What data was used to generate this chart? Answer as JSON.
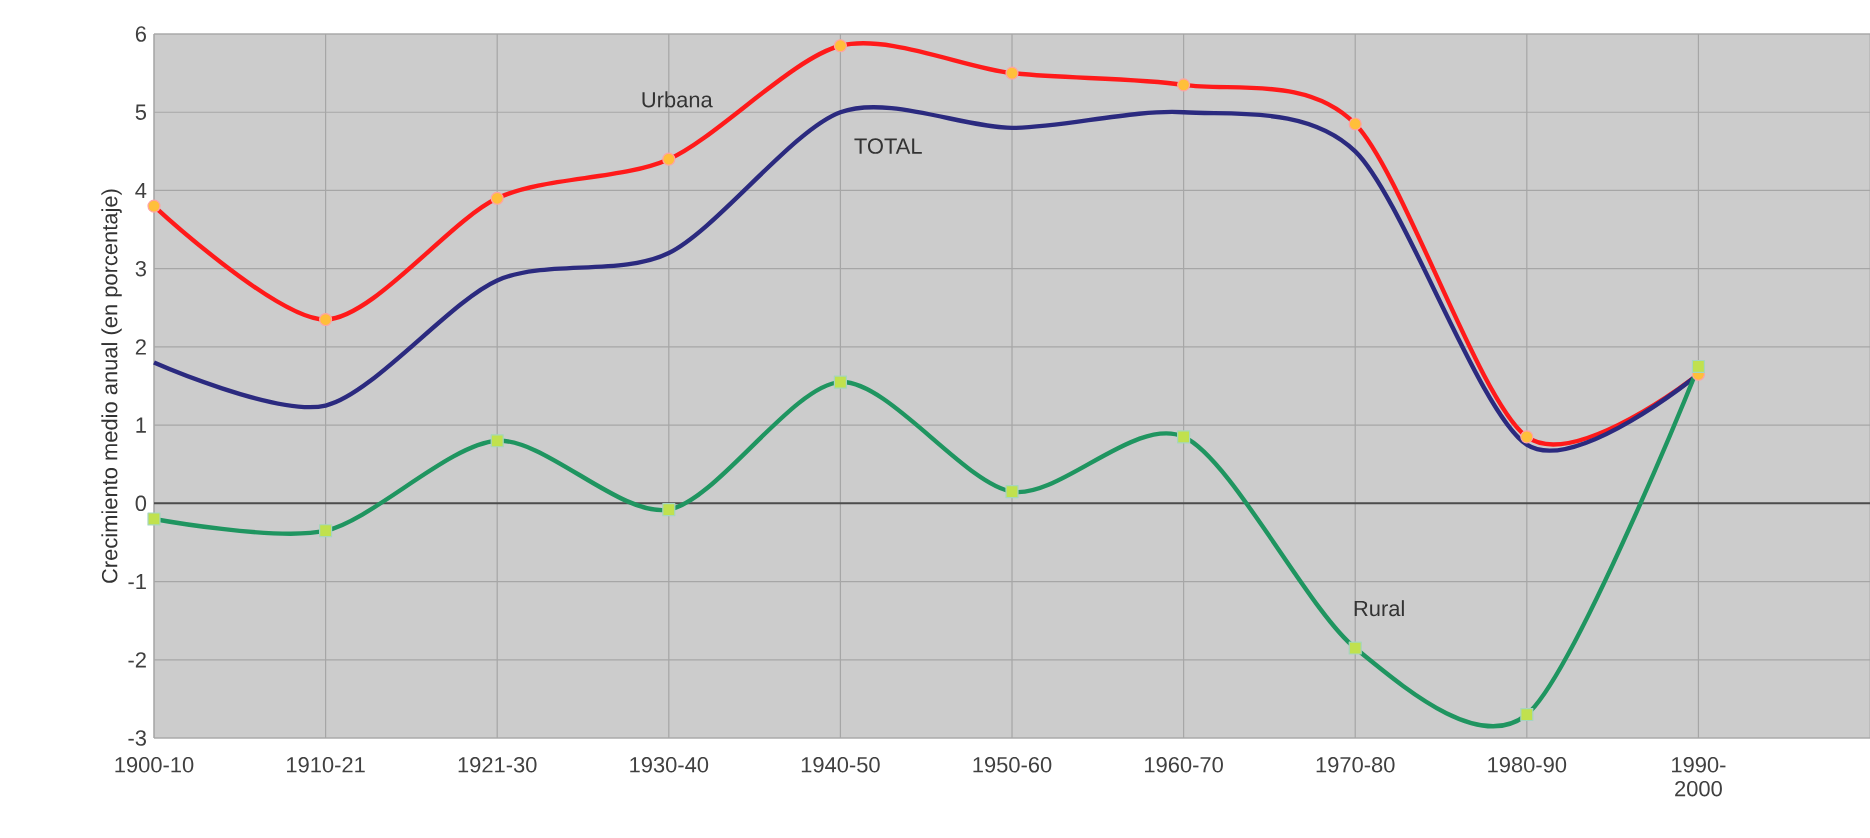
{
  "chart_data": {
    "type": "line",
    "ylabel": "Crecimiento medio anual (en porcentaje)",
    "categories": [
      "1900-10",
      "1910-21",
      "1921-30",
      "1930-40",
      "1940-50",
      "1950-60",
      "1960-70",
      "1970-80",
      "1980-90",
      "1990-\n2000",
      null
    ],
    "series": [
      {
        "name": "Urbana",
        "color": "#ff1a1a",
        "marker": "circle",
        "values": [
          3.8,
          2.35,
          3.9,
          4.4,
          5.85,
          5.5,
          5.35,
          4.85,
          0.85,
          1.65,
          null
        ]
      },
      {
        "name": "TOTAL",
        "color": "#2b2a7f",
        "marker": "none",
        "values": [
          1.8,
          1.25,
          2.85,
          3.2,
          5.0,
          4.8,
          5.0,
          4.5,
          0.75,
          1.65,
          null
        ]
      },
      {
        "name": "Rural",
        "color": "#1f9560",
        "marker": "square",
        "values": [
          -0.2,
          -0.35,
          0.8,
          -0.08,
          1.55,
          0.15,
          0.85,
          -1.85,
          -2.7,
          1.75,
          null
        ]
      }
    ],
    "ylim": [
      -3,
      6
    ],
    "yticks": [
      -3,
      -2,
      -1,
      0,
      1,
      2,
      3,
      4,
      5,
      6
    ],
    "grid": true
  }
}
